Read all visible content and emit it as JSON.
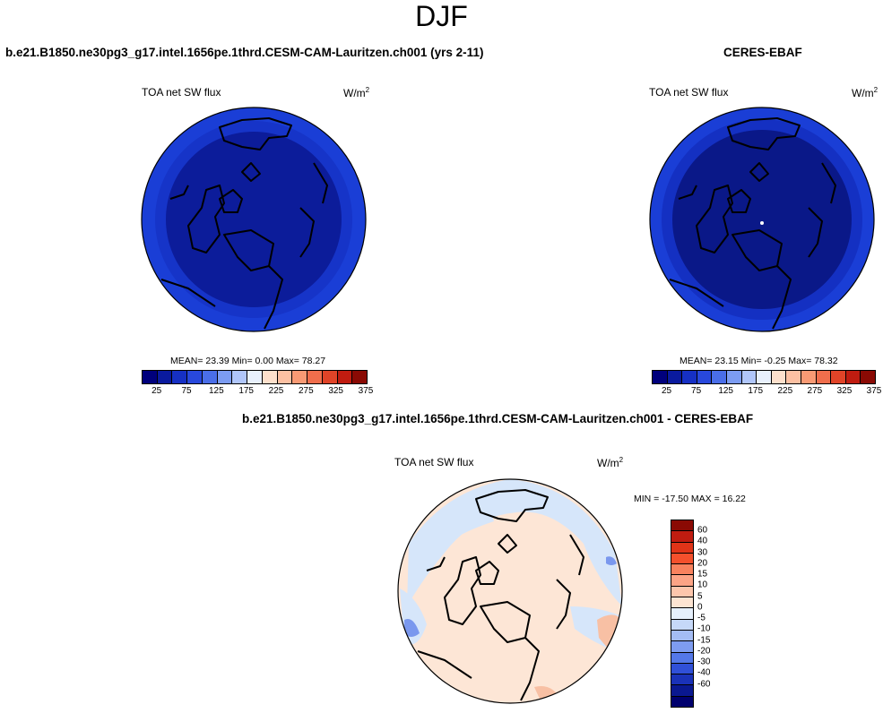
{
  "season": "DJF",
  "panels": {
    "model": {
      "case_title": "b.e21.B1850.ne30pg3_g17.intel.1656pe.1thrd.CESM-CAM-Lauritzen.ch001 (yrs 2-11)",
      "var_title": "TOA net SW flux",
      "units_base": "W/m",
      "units_exp": "2",
      "stats_text": "MEAN=  23.39  Min=   0.00  Max=  78.27"
    },
    "obs": {
      "case_title": "CERES-EBAF",
      "var_title": "TOA net SW flux",
      "units_base": "W/m",
      "units_exp": "2",
      "stats_text": "MEAN=  23.15  Min=  -0.25  Max=  78.32"
    },
    "diff": {
      "case_title": "b.e21.B1850.ne30pg3_g17.intel.1656pe.1thrd.CESM-CAM-Lauritzen.ch001 - CERES-EBAF",
      "var_title": "TOA net SW flux",
      "units_base": "W/m",
      "units_exp": "2",
      "stats_text": "MIN = -17.50 MAX =  16.22"
    }
  },
  "colorbar_abs": {
    "colors": [
      "#00007c",
      "#0a1a9e",
      "#1630c4",
      "#2848dc",
      "#4a6ee8",
      "#7c9cf2",
      "#b0c6fa",
      "#e8f0fc",
      "#fde0cc",
      "#fcc0a2",
      "#f89a74",
      "#f06e4c",
      "#e04428",
      "#c01c10",
      "#8a0a04"
    ],
    "tick_labels": [
      "25",
      "75",
      "125",
      "175",
      "225",
      "275",
      "325",
      "375"
    ]
  },
  "colorbar_diff": {
    "colors": [
      "#8a0a04",
      "#c01c10",
      "#e03418",
      "#f4502c",
      "#f8825e",
      "#fca486",
      "#fdc6ac",
      "#fde4d2",
      "#e6f0fc",
      "#c6d8f8",
      "#a4bcf4",
      "#7e9cf0",
      "#5478e8",
      "#3050d8",
      "#1a32b8",
      "#0a1890",
      "#00006e"
    ],
    "tick_labels": [
      "60",
      "40",
      "30",
      "20",
      "15",
      "10",
      "5",
      "0",
      "-5",
      "-10",
      "-15",
      "-20",
      "-30",
      "-40",
      "-60"
    ]
  },
  "maps": {
    "model": {
      "outer_color": "#1a3ed6",
      "ring_color": "#1634c8",
      "inner_color": "#0c1c9a"
    },
    "obs": {
      "outer_color": "#1a3ed6",
      "ring_color": "#1430c2",
      "inner_color": "#0a1888"
    },
    "diff": {
      "base_color": "#fde6d6",
      "cool_color": "#d6e6fa",
      "warm_color": "#f8c0a4",
      "strong_cool_color": "#7a98ee"
    }
  }
}
